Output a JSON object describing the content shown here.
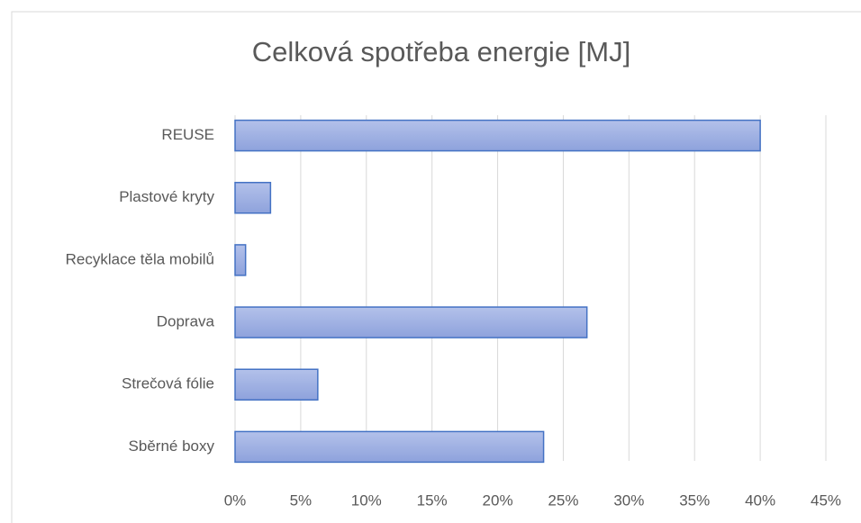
{
  "chart_data": {
    "type": "bar",
    "orientation": "horizontal",
    "title": "Celková spotřeba energie [MJ]",
    "categories": [
      "REUSE",
      "Plastové kryty",
      "Recyklace těla mobilů",
      "Doprava",
      "Strečová fólie",
      "Sběrné boxy"
    ],
    "values": [
      40,
      2.7,
      0.8,
      26.8,
      6.3,
      23.5
    ],
    "color": "#4472c4",
    "xlim": [
      0,
      45
    ],
    "xticks": [
      {
        "value": 0,
        "label": "0%"
      },
      {
        "value": 5,
        "label": "5%"
      },
      {
        "value": 10,
        "label": "10%"
      },
      {
        "value": 15,
        "label": "15%"
      },
      {
        "value": 20,
        "label": "20%"
      },
      {
        "value": 25,
        "label": "25%"
      },
      {
        "value": 30,
        "label": "30%"
      },
      {
        "value": 35,
        "label": "35%"
      },
      {
        "value": 40,
        "label": "40%"
      },
      {
        "value": 45,
        "label": "45%"
      }
    ],
    "grid": true
  }
}
